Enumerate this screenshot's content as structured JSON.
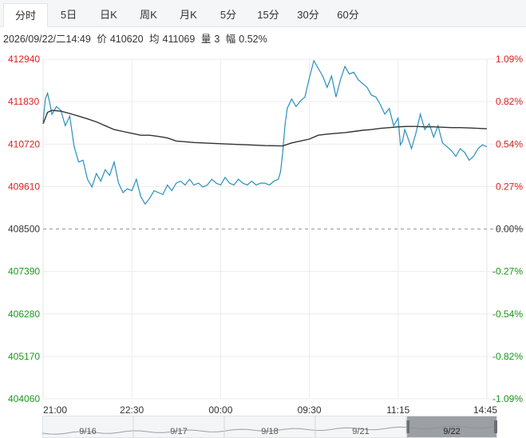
{
  "tabs": [
    {
      "label": "分时",
      "active": true
    },
    {
      "label": "5日",
      "active": false
    },
    {
      "label": "日K",
      "active": false
    },
    {
      "label": "周K",
      "active": false
    },
    {
      "label": "月K",
      "active": false
    },
    {
      "label": "5分",
      "active": false
    },
    {
      "label": "15分",
      "active": false
    },
    {
      "label": "30分",
      "active": false
    },
    {
      "label": "60分",
      "active": false
    }
  ],
  "info": {
    "datetime": "2026/09/22/二14:49",
    "price_label": "价",
    "price": "410620",
    "avg_label": "均",
    "avg": "411069",
    "vol_label": "量",
    "vol": "3",
    "amp_label": "幅",
    "amp": "0.52%"
  },
  "colors": {
    "up": "#e02020",
    "down": "#1a9a1a",
    "price_line": "#2a8fbd",
    "avg_line": "#333333",
    "grid": "#ececec",
    "baseline": "#999999"
  },
  "chart_data": {
    "type": "line",
    "title": "",
    "base_price": 408500,
    "ylim": [
      404060,
      412940
    ],
    "y_ticks": [
      "412940",
      "411830",
      "410720",
      "409610",
      "408500",
      "407390",
      "406280",
      "405170",
      "404060"
    ],
    "pct_ticks": [
      "1.09%",
      "0.82%",
      "0.54%",
      "0.27%",
      "0.00%",
      "-0.27%",
      "-0.54%",
      "-0.82%",
      "-1.09%"
    ],
    "x_ticks": [
      "21:00",
      "22:30",
      "00:00",
      "09:30",
      "11:15",
      "14:45"
    ],
    "x_tick_pos": [
      0,
      0.2,
      0.4,
      0.6,
      0.8,
      1.0
    ],
    "series": [
      {
        "key": "price",
        "x": [
          0,
          0.005,
          0.01,
          0.015,
          0.02,
          0.03,
          0.04,
          0.05,
          0.06,
          0.07,
          0.08,
          0.09,
          0.1,
          0.11,
          0.12,
          0.13,
          0.14,
          0.15,
          0.16,
          0.17,
          0.18,
          0.19,
          0.2,
          0.21,
          0.22,
          0.23,
          0.24,
          0.25,
          0.26,
          0.27,
          0.28,
          0.29,
          0.3,
          0.31,
          0.32,
          0.33,
          0.34,
          0.35,
          0.36,
          0.37,
          0.38,
          0.39,
          0.4,
          0.41,
          0.42,
          0.43,
          0.44,
          0.45,
          0.46,
          0.47,
          0.48,
          0.49,
          0.5,
          0.51,
          0.52,
          0.53,
          0.535,
          0.54,
          0.545,
          0.55,
          0.56,
          0.57,
          0.58,
          0.59,
          0.6,
          0.61,
          0.62,
          0.63,
          0.64,
          0.65,
          0.66,
          0.67,
          0.68,
          0.69,
          0.7,
          0.71,
          0.72,
          0.73,
          0.74,
          0.75,
          0.76,
          0.77,
          0.78,
          0.79,
          0.8,
          0.805,
          0.81,
          0.815,
          0.82,
          0.83,
          0.84,
          0.85,
          0.86,
          0.87,
          0.88,
          0.89,
          0.9,
          0.91,
          0.92,
          0.93,
          0.94,
          0.95,
          0.96,
          0.97,
          0.98,
          0.99,
          1.0
        ],
        "y": [
          411300,
          411900,
          412050,
          411800,
          411500,
          411700,
          411600,
          411200,
          411450,
          410650,
          410250,
          410300,
          409800,
          409600,
          409950,
          409750,
          410050,
          409900,
          410250,
          409700,
          409450,
          409550,
          409500,
          409800,
          409350,
          409150,
          409300,
          409500,
          409450,
          409400,
          409650,
          409500,
          409700,
          409750,
          409650,
          409800,
          409650,
          409700,
          409600,
          409650,
          409800,
          409700,
          409650,
          409850,
          409700,
          409650,
          409800,
          409700,
          409650,
          409750,
          409650,
          409700,
          409700,
          409650,
          409750,
          409800,
          410000,
          410500,
          411200,
          411650,
          411900,
          411700,
          411850,
          411950,
          412450,
          412900,
          412700,
          412500,
          412200,
          412500,
          411950,
          412400,
          412750,
          412550,
          412600,
          412400,
          412300,
          412200,
          412000,
          411950,
          411750,
          411500,
          411650,
          411200,
          411400,
          410700,
          410800,
          411100,
          410950,
          410600,
          411000,
          411500,
          411100,
          411250,
          410900,
          411200,
          410750,
          410650,
          410550,
          410400,
          410600,
          410500,
          410300,
          410400,
          410600,
          410700,
          410650
        ]
      },
      {
        "key": "avg",
        "x": [
          0,
          0.01,
          0.02,
          0.04,
          0.06,
          0.08,
          0.1,
          0.12,
          0.14,
          0.16,
          0.18,
          0.2,
          0.22,
          0.24,
          0.26,
          0.28,
          0.3,
          0.34,
          0.38,
          0.42,
          0.46,
          0.5,
          0.54,
          0.56,
          0.58,
          0.6,
          0.62,
          0.64,
          0.66,
          0.68,
          0.7,
          0.72,
          0.74,
          0.76,
          0.78,
          0.8,
          0.82,
          0.84,
          0.86,
          0.88,
          0.9,
          0.92,
          0.94,
          0.96,
          0.98,
          1.0
        ],
        "y": [
          411250,
          411550,
          411600,
          411580,
          411520,
          411450,
          411380,
          411300,
          411200,
          411100,
          411050,
          411000,
          410950,
          410950,
          410920,
          410880,
          410800,
          410760,
          410740,
          410720,
          410700,
          410680,
          410670,
          410750,
          410800,
          410850,
          410950,
          410980,
          411000,
          411020,
          411050,
          411080,
          411100,
          411130,
          411150,
          411170,
          411180,
          411180,
          411170,
          411170,
          411160,
          411150,
          411150,
          411140,
          411130,
          411120
        ]
      }
    ],
    "navigator": {
      "labels": [
        "9/16",
        "9/17",
        "9/18",
        "9/21",
        "9/22"
      ],
      "selected": "9/22"
    }
  }
}
